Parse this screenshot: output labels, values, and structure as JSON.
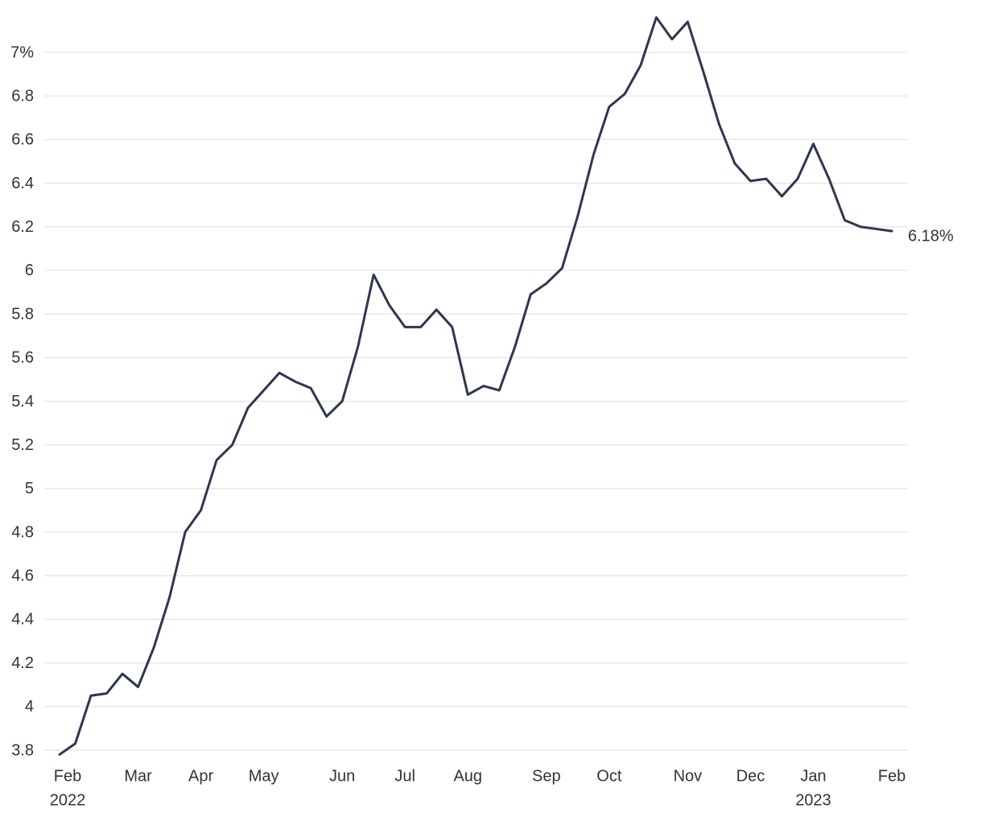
{
  "chart_data": {
    "type": "line",
    "categories": [
      "Feb",
      null,
      null,
      null,
      null,
      "Mar",
      null,
      null,
      null,
      "Apr",
      null,
      null,
      null,
      "May",
      null,
      null,
      null,
      null,
      "Jun",
      null,
      null,
      null,
      "Jul",
      null,
      null,
      null,
      "Aug",
      null,
      null,
      null,
      null,
      "Sep",
      null,
      null,
      null,
      "Oct",
      null,
      null,
      null,
      null,
      "Nov",
      null,
      null,
      null,
      "Dec",
      null,
      null,
      null,
      "Jan",
      null,
      null,
      null,
      null,
      "Feb"
    ],
    "category_years": [
      "2022",
      null,
      null,
      null,
      null,
      null,
      null,
      null,
      null,
      null,
      null,
      null,
      null,
      null,
      null,
      null,
      null,
      null,
      null,
      null,
      null,
      null,
      null,
      null,
      null,
      null,
      null,
      null,
      null,
      null,
      null,
      null,
      null,
      null,
      null,
      null,
      null,
      null,
      null,
      null,
      null,
      null,
      null,
      null,
      null,
      null,
      null,
      null,
      "2023",
      null,
      null,
      null,
      null,
      null
    ],
    "values": [
      3.78,
      3.83,
      4.05,
      4.06,
      4.15,
      4.09,
      4.27,
      4.5,
      4.8,
      4.9,
      5.13,
      5.2,
      5.37,
      5.45,
      5.53,
      5.49,
      5.46,
      5.33,
      5.4,
      5.65,
      5.98,
      5.84,
      5.74,
      5.74,
      5.82,
      5.74,
      5.43,
      5.47,
      5.45,
      5.65,
      5.89,
      5.94,
      6.01,
      6.25,
      6.53,
      6.75,
      6.81,
      6.94,
      7.16,
      7.06,
      7.14,
      6.91,
      6.67,
      6.49,
      6.41,
      6.42,
      6.34,
      6.42,
      6.58,
      6.42,
      6.23,
      6.2,
      6.19,
      6.18
    ],
    "end_label": "6.18%",
    "color": "#2e3650",
    "ylim": [
      3.8,
      7.2
    ],
    "yticks": [
      3.8,
      4,
      4.2,
      4.4,
      4.6,
      4.8,
      5,
      5.2,
      5.4,
      5.6,
      5.8,
      6,
      6.2,
      6.4,
      6.6,
      6.8,
      {
        "value": 7,
        "label": "7%"
      }
    ],
    "grid": true
  }
}
